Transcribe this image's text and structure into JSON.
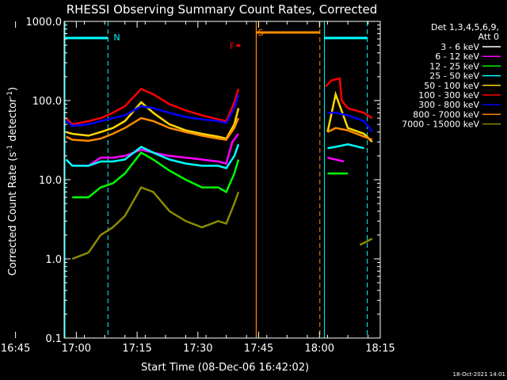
{
  "chart_data": {
    "type": "line",
    "title": "RHESSI Observing Summary Count Rates, Corrected",
    "xlabel": "Start Time (08-Dec-06 16:42:02)",
    "ylabel_main": "Corrected Count Rate (s",
    "ylabel_sup1": "-1",
    "ylabel_mid": " detector",
    "ylabel_sup2": "-1",
    "ylabel_end": ")",
    "yscale": "log",
    "ylim": [
      0.1,
      1000
    ],
    "xlim_minutes": [
      16.0,
      94.0
    ],
    "x_ticks": [
      {
        "minute": 4.0,
        "label": "16:45"
      },
      {
        "minute": 19.0,
        "label": "17:00"
      },
      {
        "minute": 34.0,
        "label": "17:15"
      },
      {
        "minute": 49.0,
        "label": "17:30"
      },
      {
        "minute": 64.0,
        "label": "17:45"
      },
      {
        "minute": 79.0,
        "label": "18:00"
      },
      {
        "minute": 94.0,
        "label": "18:15"
      }
    ],
    "y_ticks": [
      {
        "value": 0.1,
        "label": "0.1"
      },
      {
        "value": 1,
        "label": "1.0"
      },
      {
        "value": 10,
        "label": "10.0"
      },
      {
        "value": 100,
        "label": "100.0"
      },
      {
        "value": 1000,
        "label": "1000.0"
      }
    ],
    "legend_header": [
      "Det 1,3,4,5,6,9,",
      "Att 0"
    ],
    "legend_position": "right",
    "series": [
      {
        "name": "3 - 6 keV",
        "color": "#000000"
      },
      {
        "name": "6 - 12 keV",
        "color": "#ff00ff"
      },
      {
        "name": "12 - 25 keV",
        "color": "#00ff00"
      },
      {
        "name": "25 - 50 keV",
        "color": "#00ffff"
      },
      {
        "name": "50 - 100 keV",
        "color": "#ffd700"
      },
      {
        "name": "100 - 300 keV",
        "color": "#ff0000"
      },
      {
        "name": "300 - 800 keV",
        "color": "#0000ff"
      },
      {
        "name": "800 - 7000 keV",
        "color": "#ff8c00"
      },
      {
        "name": "7000 - 15000 keV",
        "color": "#8b8b00"
      }
    ],
    "annotations": [
      {
        "text": "N",
        "color": "#00ffff"
      },
      {
        "text": "S",
        "color": "#ff8c00"
      },
      {
        "text": "F",
        "color": "#ff0000"
      }
    ],
    "timestamp": "18-Oct-2021 14:01"
  }
}
